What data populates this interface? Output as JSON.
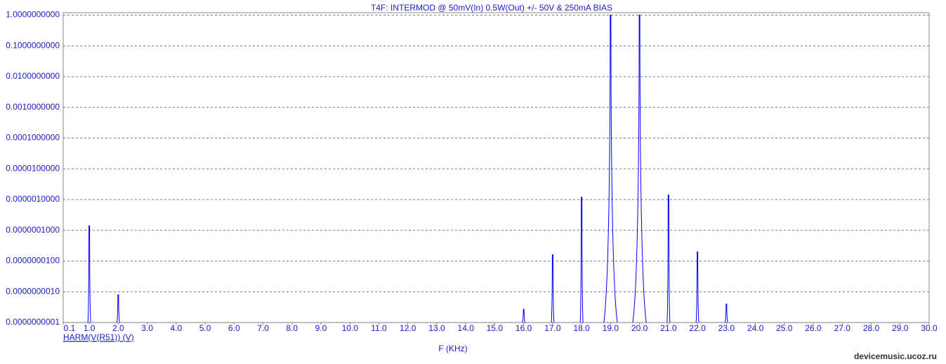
{
  "chart_data": {
    "type": "spike",
    "title": "T4F: INTERMOD  @ 50mV(In) 0.5W(Out) +/- 50V & 250mA BIAS",
    "xlabel": "F (KHz)",
    "watermark": "devicemusic.ucoz.ru",
    "log_y": true,
    "grid": true,
    "xlim": [
      0.1,
      30
    ],
    "ylim": [
      1e-10,
      1.2
    ],
    "xticks": [
      0.1,
      {
        "value": 1,
        "label": "1.0"
      },
      {
        "value": 2,
        "label": "2.0"
      },
      {
        "value": 3,
        "label": "3.0"
      },
      {
        "value": 4,
        "label": "4.0"
      },
      {
        "value": 5,
        "label": "5.0"
      },
      {
        "value": 6,
        "label": "6.0"
      },
      {
        "value": 7,
        "label": "7.0"
      },
      {
        "value": 8,
        "label": "8.0"
      },
      {
        "value": 9,
        "label": "9.0"
      },
      {
        "value": 10,
        "label": "10.0"
      },
      {
        "value": 11,
        "label": "11.0"
      },
      {
        "value": 12,
        "label": "12.0"
      },
      {
        "value": 13,
        "label": "13.0"
      },
      {
        "value": 14,
        "label": "14.0"
      },
      {
        "value": 15,
        "label": "15.0"
      },
      {
        "value": 16,
        "label": "16.0"
      },
      {
        "value": 17,
        "label": "17.0"
      },
      {
        "value": 18,
        "label": "18.0"
      },
      {
        "value": 19,
        "label": "19.0"
      },
      {
        "value": 20,
        "label": "20.0"
      },
      {
        "value": 21,
        "label": "21.0"
      },
      {
        "value": 22,
        "label": "22.0"
      },
      {
        "value": 23,
        "label": "23.0"
      },
      {
        "value": 24,
        "label": "24.0"
      },
      {
        "value": 25,
        "label": "25.0"
      },
      {
        "value": 26,
        "label": "26.0"
      },
      {
        "value": 27,
        "label": "27.0"
      },
      {
        "value": 28,
        "label": "28.0"
      },
      {
        "value": 29,
        "label": "29.0"
      },
      {
        "value": 30,
        "label": "30.0"
      }
    ],
    "yticks": [
      {
        "value": 1,
        "label": "1.0000000000"
      },
      {
        "value": 0.1,
        "label": "0.1000000000"
      },
      {
        "value": 0.01,
        "label": "0.0100000000"
      },
      {
        "value": 0.001,
        "label": "0.0010000000"
      },
      {
        "value": 0.0001,
        "label": "0.0001000000"
      },
      {
        "value": 1e-05,
        "label": "0.0000100000"
      },
      {
        "value": 1e-06,
        "label": "0.0000010000"
      },
      {
        "value": 1e-07,
        "label": "0.0000001000"
      },
      {
        "value": 1e-08,
        "label": "0.0000000100"
      },
      {
        "value": 1e-09,
        "label": "0.0000000010"
      },
      {
        "value": 1e-10,
        "label": "0.0000000001"
      }
    ],
    "series": [
      {
        "name": "HARM(V(R51)) (V)",
        "color": "#0000ff",
        "x": [
          1,
          2,
          16,
          17,
          18,
          19,
          20,
          21,
          22,
          23
        ],
        "values": [
          1.4e-07,
          8e-10,
          2.7e-10,
          1.6e-08,
          1.2e-06,
          1,
          1,
          1.4e-06,
          2e-08,
          4e-10
        ]
      }
    ]
  }
}
